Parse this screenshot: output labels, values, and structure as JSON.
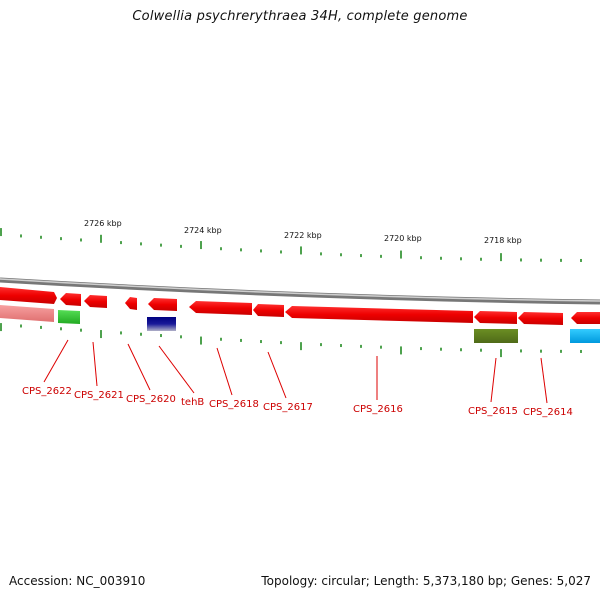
{
  "header": {
    "title": "Colwellia psychrerythraea 34H, complete genome"
  },
  "footer": {
    "accession": "Accession: NC_003910",
    "summary": "Topology: circular; Length: 5,373,180 bp; Genes: 5,027"
  },
  "colors": {
    "backbone": "#888888",
    "forward_gene": "#ee0000",
    "reverse_gene": "#ee0000",
    "label": "#cc0000",
    "tick": "#228b22"
  },
  "scale_labels": [
    "2726 kbp",
    "2724 kbp",
    "2722 kbp",
    "2720 kbp",
    "2718 kbp"
  ],
  "genes": [
    {
      "label": "CPS_2622"
    },
    {
      "label": "CPS_2621"
    },
    {
      "label": "CPS_2620"
    },
    {
      "label": "tehB"
    },
    {
      "label": "CPS_2618"
    },
    {
      "label": "CPS_2617"
    },
    {
      "label": "CPS_2616"
    },
    {
      "label": "CPS_2615"
    },
    {
      "label": "CPS_2614"
    }
  ]
}
